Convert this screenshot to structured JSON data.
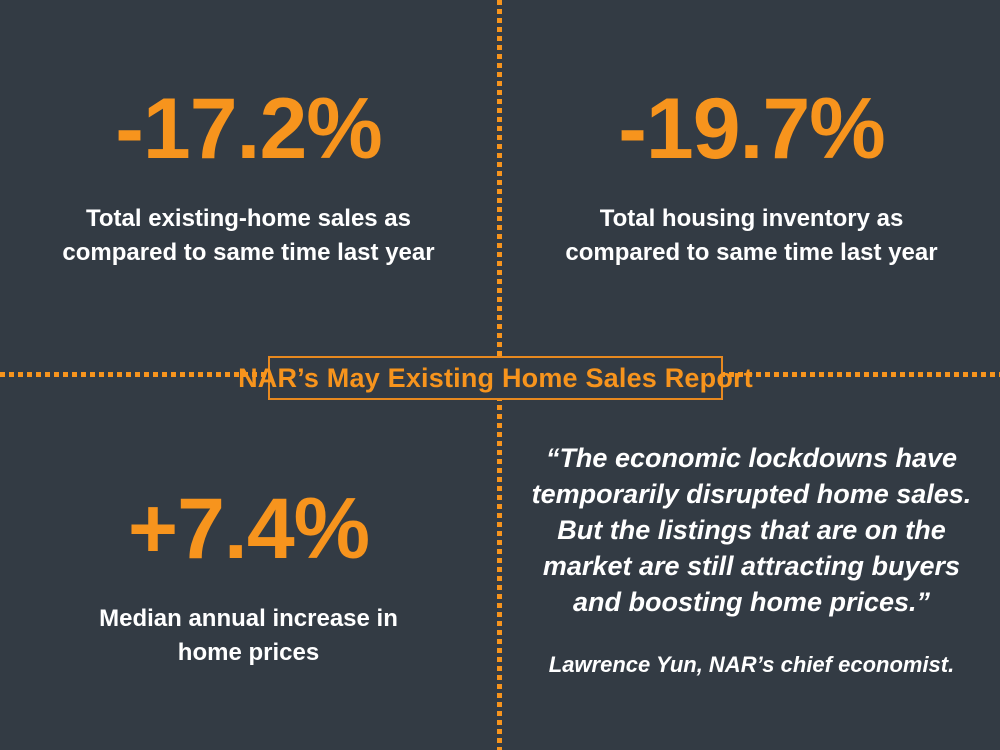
{
  "theme": {
    "background_color": "#333B44",
    "accent_color": "#F7941D",
    "text_color": "#FFFFFF"
  },
  "title_box": {
    "label": "NAR’s May Existing Home Sales Report"
  },
  "stats": {
    "existing_home_sales": {
      "value": "-17.2%",
      "caption": "Total existing-home sales as\ncompared to same time last year"
    },
    "housing_inventory": {
      "value": "-19.7%",
      "caption": "Total housing inventory as\ncompared to same time last year"
    },
    "median_price_increase": {
      "value": "+7.4%",
      "caption": "Median annual increase in\nhome prices"
    }
  },
  "quote": {
    "text": "“The economic lockdowns have\ntemporarily disrupted home sales.\nBut the listings that are on the\nmarket are still attracting buyers\nand boosting home prices.”",
    "attribution": "Lawrence Yun, NAR’s chief economist."
  }
}
